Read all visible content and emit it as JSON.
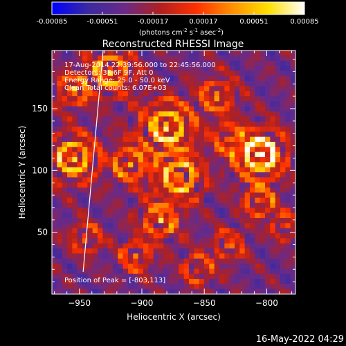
{
  "colorbar": {
    "ticks": [
      "-0.00085",
      "-0.00051",
      "-0.00017",
      "0.00017",
      "0.00051",
      "0.00085"
    ],
    "unit_base": "(photons cm",
    "unit_exp1": "-2",
    "unit_mid1": " s",
    "unit_exp2": "-1",
    "unit_mid2": " asec",
    "unit_exp3": "-2",
    "unit_end": ")"
  },
  "chart_data": {
    "type": "heatmap",
    "title": "Reconstructed RHESSI Image",
    "xlabel": "Heliocentric X (arcsec)",
    "ylabel": "Heliocentric Y (arcsec)",
    "xlim": [
      -972,
      -777
    ],
    "ylim": [
      0,
      197
    ],
    "x_ticks": [
      -950,
      -900,
      -850,
      -800
    ],
    "y_ticks": [
      50,
      100,
      150
    ],
    "x_tick_labels": [
      "−950",
      "−900",
      "−850",
      "−800"
    ],
    "y_tick_labels": [
      "50",
      "100",
      "150"
    ],
    "annotations": [
      "17-Aug-2014 22:39:56.000 to 22:45:56.000",
      "Detectors: 3F 6F 9F, Att 0",
      "Energy Range: 25.0 - 50.0 keV",
      "Clean    Total counts: 6.07E+03"
    ],
    "peak_label": "Position of Peak = [-803,113]",
    "peak": [
      -803,
      113
    ],
    "limb_line": [
      [
        -947,
        18
      ],
      [
        -931,
        197
      ]
    ],
    "colormap": [
      "#0000ff",
      "#3a2aa0",
      "#6a2a88",
      "#b02020",
      "#ff3000",
      "#ff9000",
      "#ffe000",
      "#ffffff"
    ]
  },
  "footer": {
    "timestamp": "16-May-2022 04:29"
  }
}
